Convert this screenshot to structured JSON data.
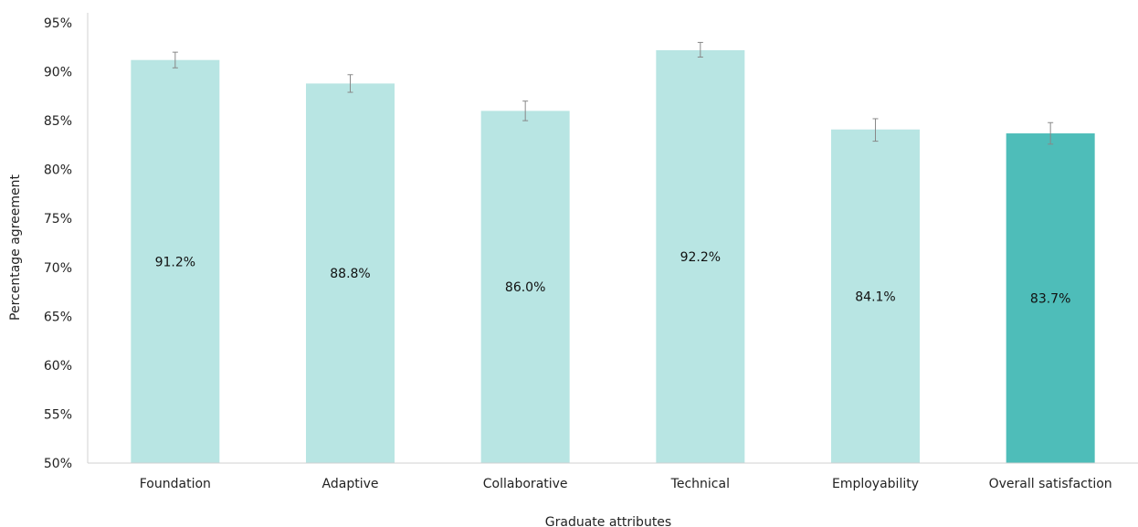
{
  "chart_data": {
    "type": "bar",
    "xlabel": "Graduate attributes",
    "ylabel": "Percentage agreement",
    "ylim": [
      50,
      95
    ],
    "yticks": [
      50,
      55,
      60,
      65,
      70,
      75,
      80,
      85,
      90,
      95
    ],
    "ytick_labels": [
      "50%",
      "55%",
      "60%",
      "65%",
      "70%",
      "75%",
      "80%",
      "85%",
      "90%",
      "95%"
    ],
    "grid": false,
    "categories": [
      "Foundation",
      "Adaptive",
      "Collaborative",
      "Technical",
      "Employability",
      "Overall satisfaction"
    ],
    "values": [
      91.2,
      88.8,
      86.0,
      92.2,
      84.1,
      83.7
    ],
    "value_labels": [
      "91.2%",
      "88.8%",
      "86.0%",
      "92.2%",
      "84.1%",
      "83.7%"
    ],
    "error_low": [
      90.4,
      87.9,
      85.0,
      91.5,
      82.9,
      82.6
    ],
    "error_high": [
      92.0,
      89.7,
      87.0,
      93.0,
      85.2,
      84.8
    ],
    "colors": [
      "#b8e5e3",
      "#b8e5e3",
      "#b8e5e3",
      "#b8e5e3",
      "#b8e5e3",
      "#4ebdb9"
    ],
    "error_bar_color": "#888888",
    "axis_color": "#d0d0d0"
  }
}
